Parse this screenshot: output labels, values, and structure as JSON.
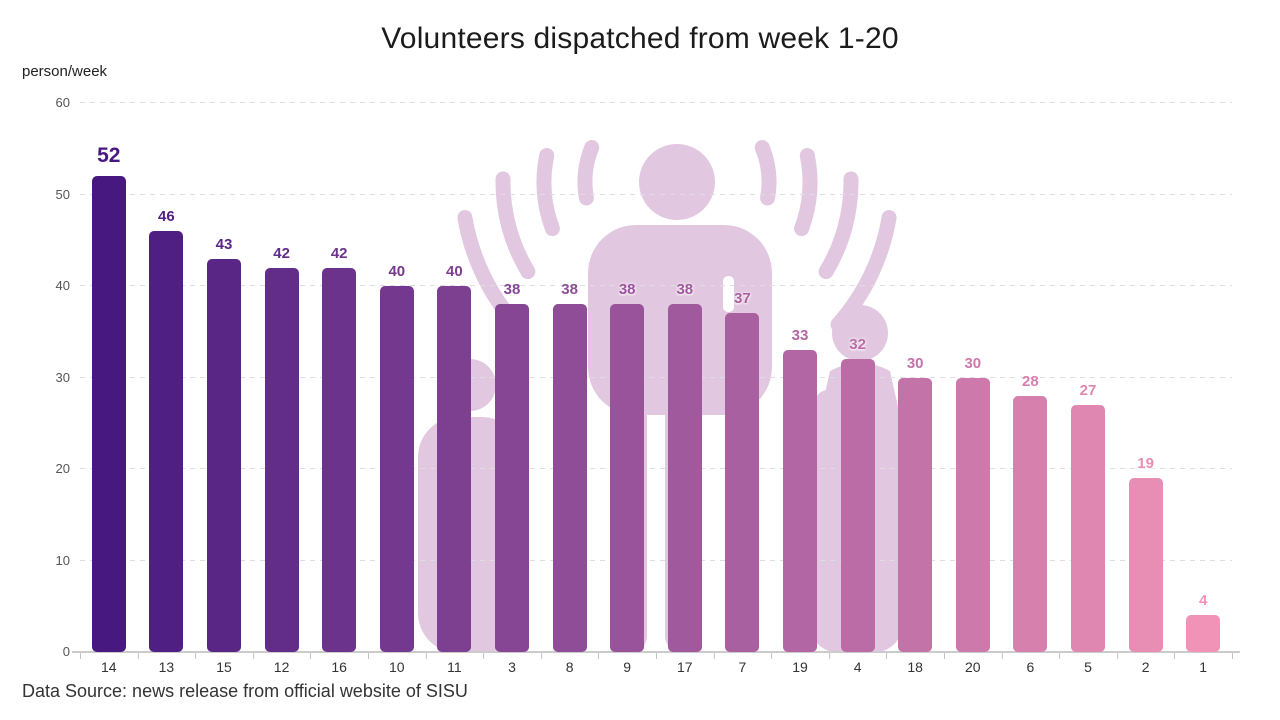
{
  "title": "Volunteers dispatched from week 1-20",
  "y_axis_unit": "person/week",
  "footer": "Data Source: news release from official website of SISU",
  "chart_data": {
    "type": "bar",
    "title": "Volunteers dispatched from week 1-20",
    "categories": [
      "14",
      "13",
      "15",
      "12",
      "16",
      "10",
      "11",
      "3",
      "8",
      "9",
      "17",
      "7",
      "19",
      "4",
      "18",
      "20",
      "6",
      "5",
      "2",
      "1"
    ],
    "values": [
      52,
      46,
      43,
      42,
      42,
      40,
      40,
      38,
      38,
      38,
      38,
      37,
      33,
      32,
      30,
      30,
      28,
      27,
      19,
      4
    ],
    "xlabel": "",
    "ylabel": "person/week",
    "ylim": [
      0,
      60
    ],
    "y_ticks": [
      0,
      10,
      20,
      30,
      40,
      50,
      60
    ],
    "grid": true,
    "legend": false,
    "value_labels_shown": true,
    "note": "Data Source: news release from official website of SISU"
  },
  "colors": {
    "bar_gradient_start": "#471980",
    "bar_gradient_end": "#f193b7",
    "watermark": "#e2c7e0",
    "gridline": "#e0dde0",
    "axis": "#cbcbcb",
    "title_text": "#1b1b1b",
    "tick_text": "#555555",
    "background": "#ffffff"
  },
  "icons": {
    "watermark": "broadcasting-volunteer-icon"
  }
}
